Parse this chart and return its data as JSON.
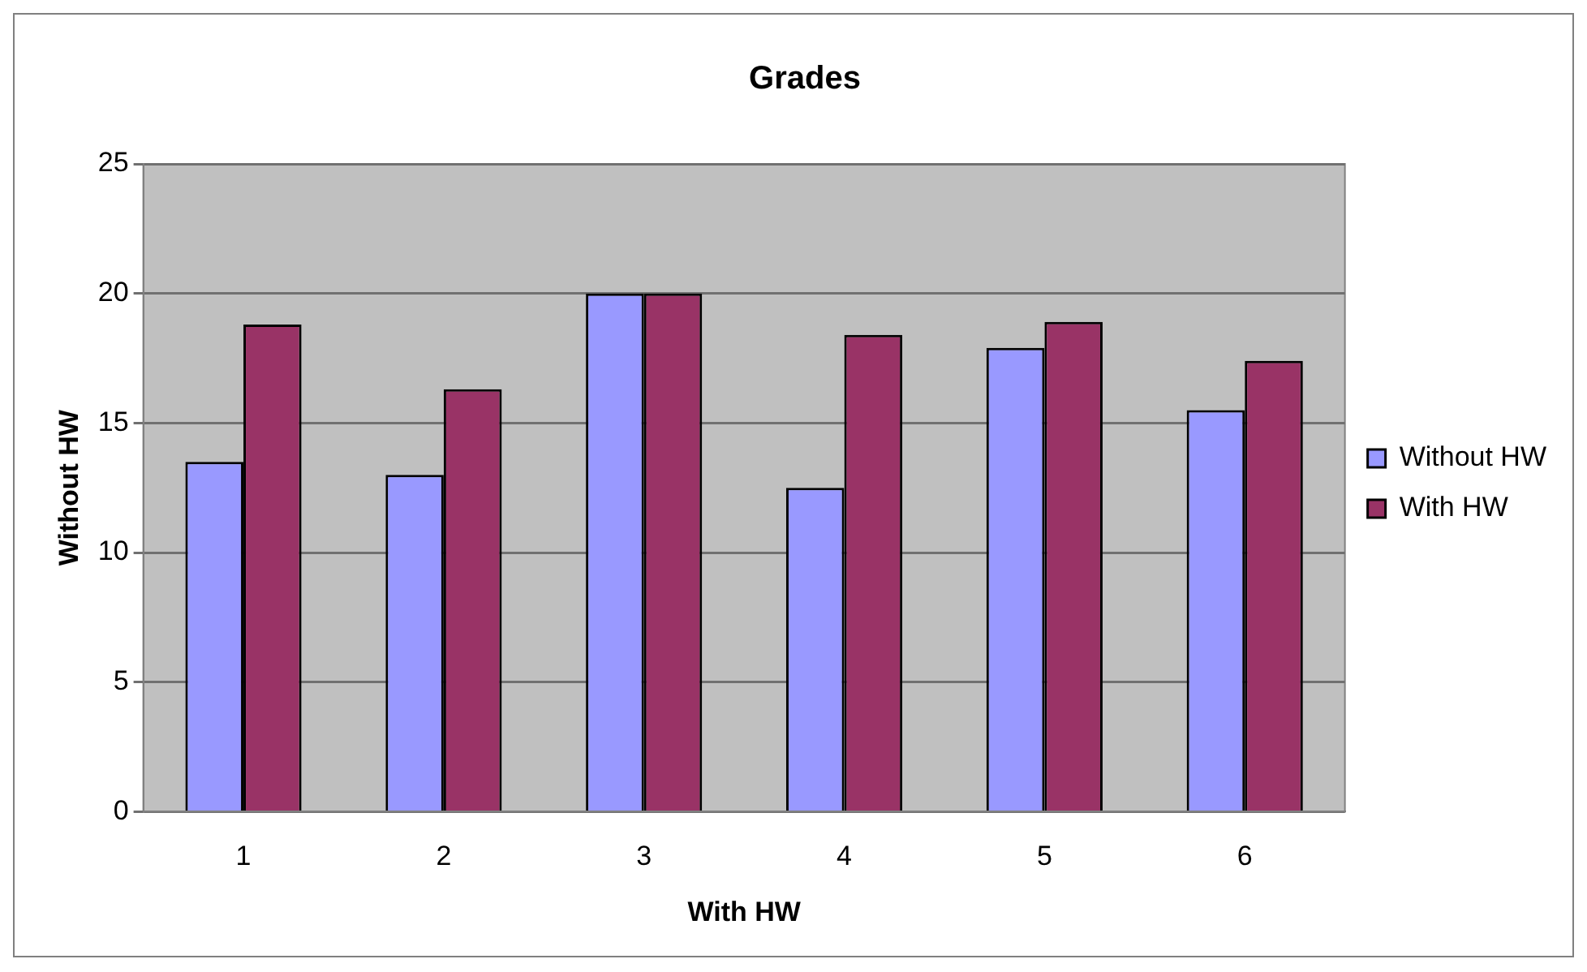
{
  "chart_data": {
    "type": "bar",
    "title": "Grades",
    "xlabel": "With HW",
    "ylabel": "Without HW",
    "categories": [
      "1",
      "2",
      "3",
      "4",
      "5",
      "6"
    ],
    "series": [
      {
        "name": "Without HW",
        "color": "#9999ff",
        "values": [
          13.5,
          13,
          20,
          12.5,
          17.9,
          15.5
        ]
      },
      {
        "name": "With HW",
        "color": "#993366",
        "values": [
          18.8,
          16.3,
          20,
          18.4,
          18.9,
          17.4
        ]
      }
    ],
    "ylim": [
      0,
      25
    ],
    "yticks": [
      0,
      5,
      10,
      15,
      20,
      25
    ],
    "grid": "y",
    "legend": "right"
  }
}
